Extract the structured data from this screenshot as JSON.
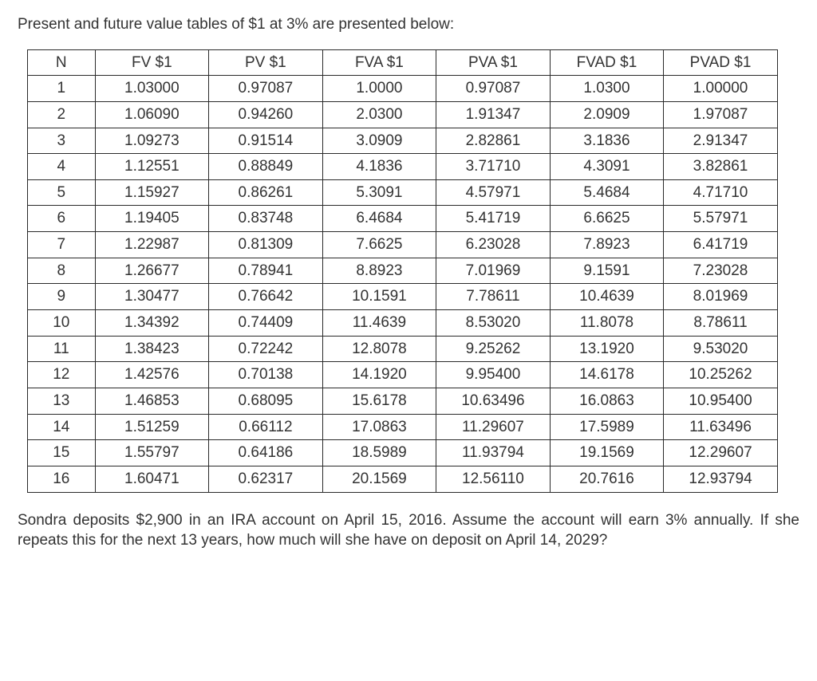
{
  "intro_text": "Present and future value tables of $1 at 3% are presented below:",
  "table": {
    "columns": [
      "N",
      "FV $1",
      "PV $1",
      "FVA $1",
      "PVA $1",
      "FVAD $1",
      "PVAD $1"
    ],
    "rows": [
      [
        "1",
        "1.03000",
        "0.97087",
        "1.0000",
        "0.97087",
        "1.0300",
        "1.00000"
      ],
      [
        "2",
        "1.06090",
        "0.94260",
        "2.0300",
        "1.91347",
        "2.0909",
        "1.97087"
      ],
      [
        "3",
        "1.09273",
        "0.91514",
        "3.0909",
        "2.82861",
        "3.1836",
        "2.91347"
      ],
      [
        "4",
        "1.12551",
        "0.88849",
        "4.1836",
        "3.71710",
        "4.3091",
        "3.82861"
      ],
      [
        "5",
        "1.15927",
        "0.86261",
        "5.3091",
        "4.57971",
        "5.4684",
        "4.71710"
      ],
      [
        "6",
        "1.19405",
        "0.83748",
        "6.4684",
        "5.41719",
        "6.6625",
        "5.57971"
      ],
      [
        "7",
        "1.22987",
        "0.81309",
        "7.6625",
        "6.23028",
        "7.8923",
        "6.41719"
      ],
      [
        "8",
        "1.26677",
        "0.78941",
        "8.8923",
        "7.01969",
        "9.1591",
        "7.23028"
      ],
      [
        "9",
        "1.30477",
        "0.76642",
        "10.1591",
        "7.78611",
        "10.4639",
        "8.01969"
      ],
      [
        "10",
        "1.34392",
        "0.74409",
        "11.4639",
        "8.53020",
        "11.8078",
        "8.78611"
      ],
      [
        "11",
        "1.38423",
        "0.72242",
        "12.8078",
        "9.25262",
        "13.1920",
        "9.53020"
      ],
      [
        "12",
        "1.42576",
        "0.70138",
        "14.1920",
        "9.95400",
        "14.6178",
        "10.25262"
      ],
      [
        "13",
        "1.46853",
        "0.68095",
        "15.6178",
        "10.63496",
        "16.0863",
        "10.95400"
      ],
      [
        "14",
        "1.51259",
        "0.66112",
        "17.0863",
        "11.29607",
        "17.5989",
        "11.63496"
      ],
      [
        "15",
        "1.55797",
        "0.64186",
        "18.5989",
        "11.93794",
        "19.1569",
        "12.29607"
      ],
      [
        "16",
        "1.60471",
        "0.62317",
        "20.1569",
        "12.56110",
        "20.7616",
        "12.93794"
      ]
    ],
    "border_color": "#2a2a2a",
    "text_color": "#333333",
    "background_color": "#ffffff",
    "font_size_pt": 14
  },
  "question_text": "Sondra deposits $2,900 in an IRA account on April 15, 2016. Assume the account will earn 3% annually. If she repeats this for the next 13 years, how much will she have on deposit on April 14, 2029?"
}
